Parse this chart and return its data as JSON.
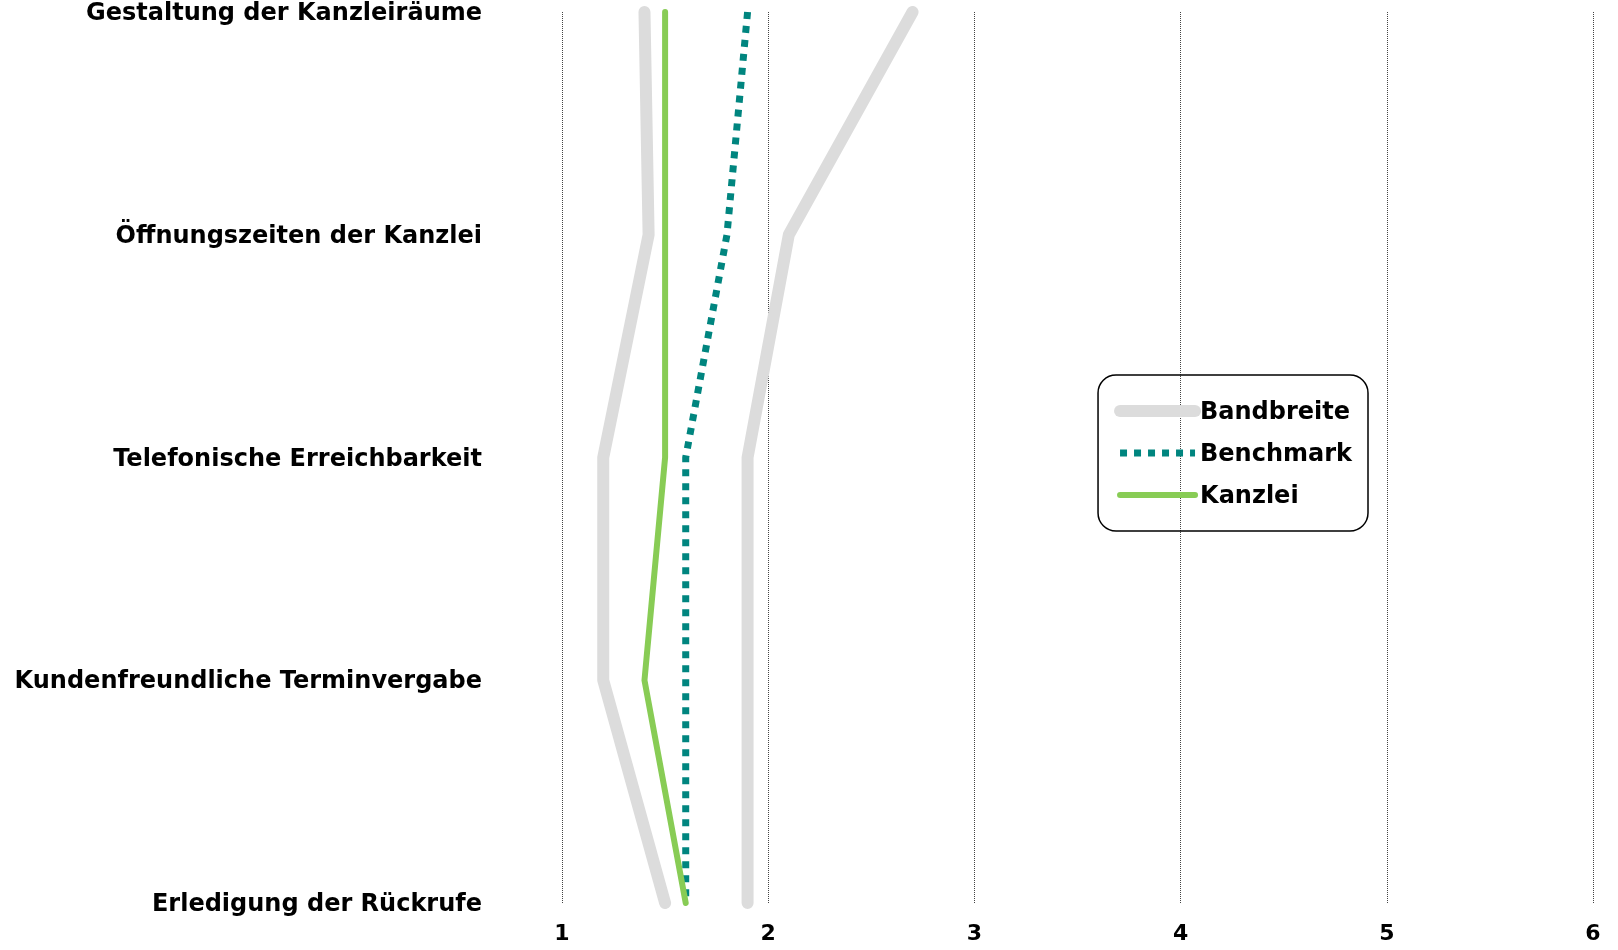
{
  "chart_data": {
    "type": "line",
    "categories": [
      "Gestaltung der Kanzleiräume",
      "Öffnungszeiten der Kanzlei",
      "Telefonische Erreichbarkeit",
      "Kundenfreundliche Terminvergabe",
      "Erledigung der Rückrufe"
    ],
    "orientation": "horizontal",
    "xlim": [
      1,
      6
    ],
    "xticks": [
      1,
      2,
      3,
      4,
      5,
      6
    ],
    "grid": "x",
    "legend": "right",
    "marker": "none",
    "series": [
      {
        "name": "Bandbreite",
        "color": "#dcdcdc",
        "values": [
          1.4,
          1.42,
          1.2,
          1.2,
          1.5
        ],
        "line_style": "solid"
      },
      {
        "color": "#dcdcdc",
        "values": [
          2.7,
          2.1,
          1.9,
          1.9,
          1.9
        ],
        "line_style": "solid"
      },
      {
        "name": "Benchmark",
        "color": "#00857f",
        "values": [
          1.9,
          1.8,
          1.6,
          1.6,
          1.6
        ],
        "line_style": "dotted"
      },
      {
        "name": "Kanzlei",
        "color": "#88cc55",
        "values": [
          1.5,
          1.5,
          1.5,
          1.4,
          1.6
        ],
        "line_style": "solid"
      }
    ]
  }
}
